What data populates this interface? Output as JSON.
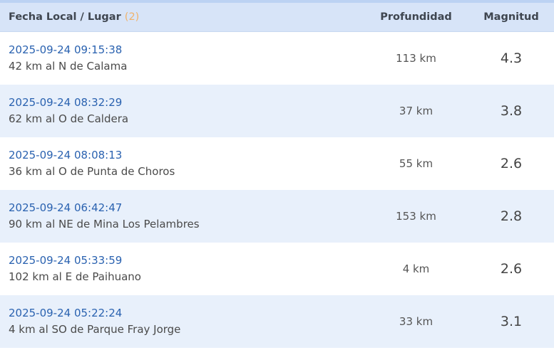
{
  "header": {
    "col1": "Fecha Local / Lugar",
    "count": "(2)",
    "col2": "Profundidad",
    "col3": "Magnitud"
  },
  "rows": [
    {
      "date": "2025-09-24 09:15:38",
      "place": "42 km al N de Calama",
      "depth": "113 km",
      "magnitude": "4.3"
    },
    {
      "date": "2025-09-24 08:32:29",
      "place": "62 km al O de Caldera",
      "depth": "37 km",
      "magnitude": "3.8"
    },
    {
      "date": "2025-09-24 08:08:13",
      "place": "36 km al O de Punta de Choros",
      "depth": "55 km",
      "magnitude": "2.6"
    },
    {
      "date": "2025-09-24 06:42:47",
      "place": "90 km al NE de Mina Los Pelambres",
      "depth": "153 km",
      "magnitude": "2.8"
    },
    {
      "date": "2025-09-24 05:33:59",
      "place": "102 km al E de Paihuano",
      "depth": "4 km",
      "magnitude": "2.6"
    },
    {
      "date": "2025-09-24 05:22:24",
      "place": "4 km al SO de Parque Fray Jorge",
      "depth": "33 km",
      "magnitude": "3.1"
    }
  ]
}
